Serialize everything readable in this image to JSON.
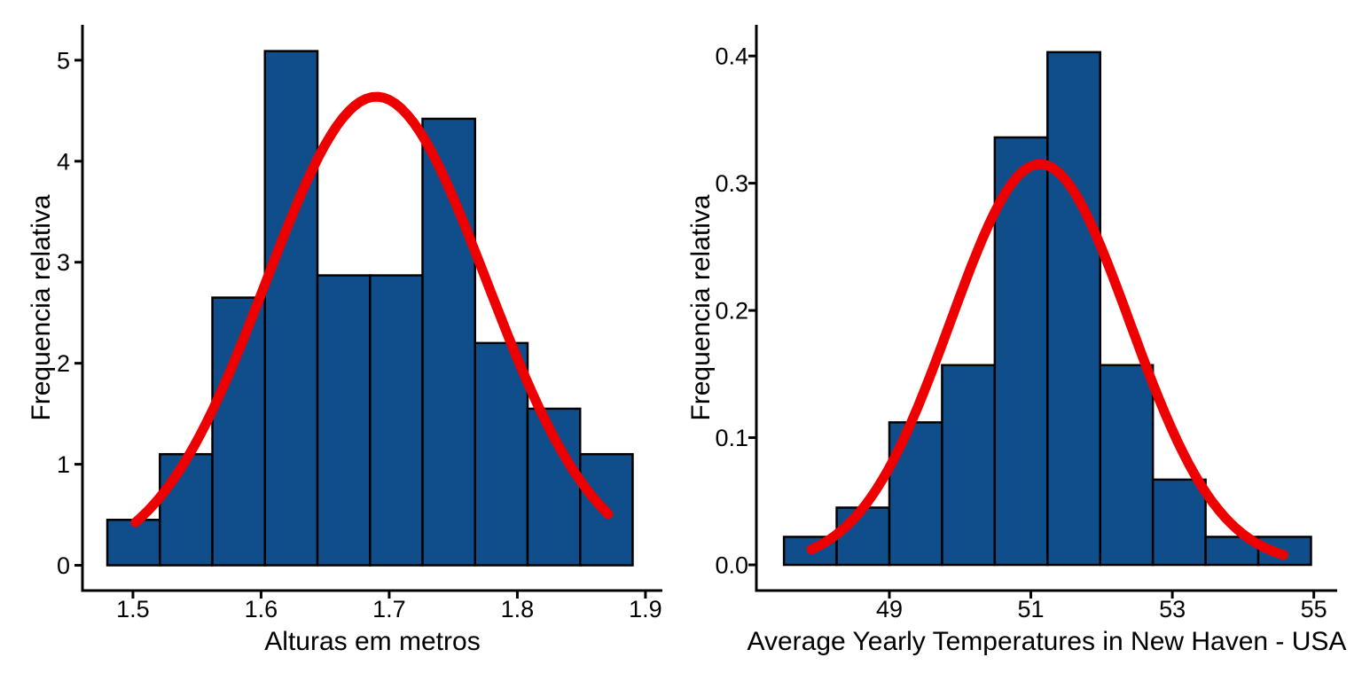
{
  "figure": {
    "background": "#ffffff",
    "description": "Two density histograms with fitted normal curves"
  },
  "chart_data": [
    {
      "type": "bar",
      "subtype": "histogram-with-normal-curve",
      "title": "",
      "xlabel": "Alturas em metros",
      "ylabel": "Frequencia relativa",
      "bins": {
        "start": 1.48,
        "width": 0.041
      },
      "categories": [
        "1.48-1.52",
        "1.52-1.56",
        "1.56-1.60",
        "1.60-1.64",
        "1.64-1.69",
        "1.69-1.73",
        "1.73-1.77",
        "1.77-1.81",
        "1.81-1.85",
        "1.85-1.89"
      ],
      "values": [
        0.45,
        1.1,
        2.65,
        5.09,
        2.87,
        2.87,
        4.42,
        2.2,
        1.55,
        1.1
      ],
      "x_ticks": [
        1.5,
        1.6,
        1.7,
        1.8,
        1.9
      ],
      "x_tick_labels": [
        "1.5",
        "1.6",
        "1.7",
        "1.8",
        "1.9"
      ],
      "y_ticks": [
        0,
        1,
        2,
        3,
        4,
        5
      ],
      "y_tick_labels": [
        "0",
        "1",
        "2",
        "3",
        "4",
        "5"
      ],
      "xlim": [
        1.4606,
        1.9132
      ],
      "ylim": [
        -0.25,
        5.35
      ],
      "grid": false,
      "legend": "none",
      "normal_curve": {
        "mean": 1.69,
        "sd": 0.086,
        "x_from": 1.502,
        "x_to": 1.871
      },
      "colors": {
        "bar_fill": "#104E8B",
        "bar_edge": "#000000",
        "curve": "#EE0000",
        "axis": "#000000"
      }
    },
    {
      "type": "bar",
      "subtype": "histogram-with-normal-curve",
      "title": "",
      "xlabel": "Average Yearly Temperatures in New Haven - USA",
      "ylabel": "Frequencia relativa",
      "bins": {
        "start": 47.51,
        "width": 0.745
      },
      "categories": [
        "47.51-48.26",
        "48.26-49.00",
        "49.00-49.75",
        "49.75-50.49",
        "50.49-51.24",
        "51.24-51.98",
        "51.98-52.73",
        "52.73-53.47",
        "53.47-54.22",
        "54.22-54.96"
      ],
      "values": [
        0.022,
        0.045,
        0.112,
        0.157,
        0.336,
        0.403,
        0.157,
        0.067,
        0.022,
        0.022
      ],
      "x_ticks": [
        49,
        51,
        53,
        55
      ],
      "x_tick_labels": [
        "49",
        "51",
        "53",
        "55"
      ],
      "y_ticks": [
        0.0,
        0.1,
        0.2,
        0.3,
        0.4
      ],
      "y_tick_labels": [
        "0.0",
        "0.1",
        "0.2",
        "0.3",
        "0.4"
      ],
      "xlim": [
        47.12,
        55.33
      ],
      "ylim": [
        -0.0202,
        0.4245
      ],
      "grid": false,
      "legend": "none",
      "normal_curve": {
        "mean": 51.13,
        "sd": 1.266,
        "x_from": 47.9,
        "x_to": 54.57
      },
      "colors": {
        "bar_fill": "#104E8B",
        "bar_edge": "#000000",
        "curve": "#EE0000",
        "axis": "#000000"
      }
    }
  ]
}
